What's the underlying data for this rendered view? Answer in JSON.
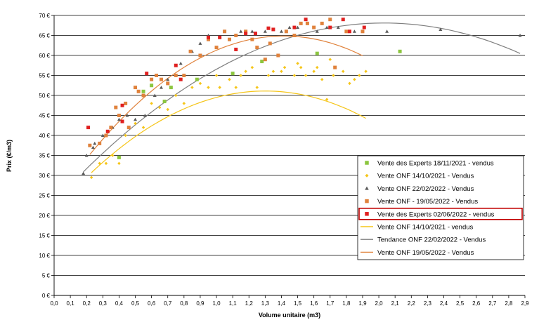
{
  "chart_data": {
    "type": "scatter",
    "xlabel": "Volume unitaire (m3)",
    "ylabel": "Prix (€/m3)",
    "xlim": [
      0,
      2.9
    ],
    "ylim": [
      0,
      70
    ],
    "x_ticks": [
      "0,0",
      "0,1",
      "0,2",
      "0,3",
      "0,4",
      "0,5",
      "0,6",
      "0,7",
      "0,8",
      "0,9",
      "1,0",
      "1,1",
      "1,2",
      "1,3",
      "1,4",
      "1,5",
      "1,6",
      "1,7",
      "1,8",
      "1,9",
      "2,0",
      "2,1",
      "2,2",
      "2,3",
      "2,4",
      "2,5",
      "2,6",
      "2,7",
      "2,8",
      "2,9"
    ],
    "y_ticks": [
      "0 €",
      "5 €",
      "10 €",
      "15 €",
      "20 €",
      "25 €",
      "30 €",
      "35 €",
      "40 €",
      "45 €",
      "50 €",
      "55 €",
      "60 €",
      "65 €",
      "70 €"
    ],
    "grid": "horizontal",
    "legend_position": "right",
    "series": [
      {
        "name": "Vente des Experts 18/11/2021 - vendus",
        "marker": "square",
        "color": "#8cc63f",
        "points": [
          [
            0.4,
            34.5
          ],
          [
            0.55,
            51
          ],
          [
            0.6,
            52.5
          ],
          [
            0.68,
            48.5
          ],
          [
            0.72,
            52
          ],
          [
            0.88,
            54
          ],
          [
            1.1,
            55.5
          ],
          [
            1.28,
            58.5
          ],
          [
            1.62,
            60.5
          ],
          [
            2.13,
            61
          ]
        ]
      },
      {
        "name": "Vente ONF 14/10/2021 - Vendus",
        "marker": "diamond",
        "color": "#f5c518",
        "points": [
          [
            0.23,
            29.5
          ],
          [
            0.28,
            33
          ],
          [
            0.32,
            33
          ],
          [
            0.36,
            35
          ],
          [
            0.4,
            33
          ],
          [
            0.44,
            40
          ],
          [
            0.5,
            43
          ],
          [
            0.55,
            42
          ],
          [
            0.6,
            48
          ],
          [
            0.65,
            47
          ],
          [
            0.7,
            46.5
          ],
          [
            0.75,
            50
          ],
          [
            0.8,
            48
          ],
          [
            0.85,
            52
          ],
          [
            0.9,
            53
          ],
          [
            0.95,
            52
          ],
          [
            1.0,
            55
          ],
          [
            1.02,
            52
          ],
          [
            1.08,
            54
          ],
          [
            1.12,
            52
          ],
          [
            1.15,
            55
          ],
          [
            1.18,
            56
          ],
          [
            1.22,
            57
          ],
          [
            1.25,
            52
          ],
          [
            1.3,
            59
          ],
          [
            1.32,
            55
          ],
          [
            1.35,
            56
          ],
          [
            1.4,
            56
          ],
          [
            1.42,
            57
          ],
          [
            1.48,
            55
          ],
          [
            1.5,
            58
          ],
          [
            1.52,
            57
          ],
          [
            1.55,
            55
          ],
          [
            1.6,
            56
          ],
          [
            1.62,
            57
          ],
          [
            1.65,
            54
          ],
          [
            1.68,
            49
          ],
          [
            1.7,
            59
          ],
          [
            1.72,
            55
          ],
          [
            1.78,
            56
          ],
          [
            1.82,
            53
          ],
          [
            1.85,
            54
          ],
          [
            1.88,
            55
          ],
          [
            1.92,
            56
          ]
        ]
      },
      {
        "name": "Vente ONF 22/02/2022 - Vendus",
        "marker": "triangle",
        "color": "#595959",
        "points": [
          [
            0.18,
            30.5
          ],
          [
            0.2,
            35
          ],
          [
            0.24,
            37
          ],
          [
            0.25,
            38
          ],
          [
            0.3,
            40
          ],
          [
            0.36,
            42
          ],
          [
            0.4,
            44
          ],
          [
            0.45,
            45
          ],
          [
            0.5,
            44
          ],
          [
            0.56,
            45
          ],
          [
            0.62,
            50
          ],
          [
            0.66,
            52
          ],
          [
            0.7,
            54
          ],
          [
            0.78,
            58
          ],
          [
            0.85,
            61
          ],
          [
            0.9,
            63
          ],
          [
            0.95,
            65
          ],
          [
            1.05,
            66
          ],
          [
            1.15,
            66
          ],
          [
            1.22,
            66
          ],
          [
            1.3,
            66
          ],
          [
            1.4,
            66
          ],
          [
            1.45,
            67
          ],
          [
            1.5,
            67
          ],
          [
            1.62,
            66
          ],
          [
            1.68,
            67
          ],
          [
            1.75,
            67
          ],
          [
            1.85,
            66
          ],
          [
            2.05,
            66
          ],
          [
            2.38,
            66.5
          ],
          [
            2.87,
            65
          ]
        ]
      },
      {
        "name": "Vente ONF - 19/05/2022 - Vendus",
        "marker": "square",
        "color": "#e0823c",
        "points": [
          [
            0.22,
            37.5
          ],
          [
            0.28,
            38
          ],
          [
            0.32,
            40
          ],
          [
            0.35,
            42
          ],
          [
            0.38,
            47
          ],
          [
            0.4,
            45
          ],
          [
            0.44,
            48
          ],
          [
            0.46,
            42
          ],
          [
            0.5,
            52
          ],
          [
            0.52,
            51
          ],
          [
            0.55,
            50
          ],
          [
            0.6,
            54
          ],
          [
            0.63,
            55
          ],
          [
            0.66,
            54
          ],
          [
            0.7,
            53
          ],
          [
            0.75,
            55
          ],
          [
            0.8,
            55
          ],
          [
            0.84,
            61
          ],
          [
            0.9,
            60
          ],
          [
            0.95,
            64
          ],
          [
            1.0,
            62
          ],
          [
            1.05,
            66
          ],
          [
            1.08,
            64
          ],
          [
            1.12,
            65
          ],
          [
            1.18,
            66
          ],
          [
            1.22,
            64
          ],
          [
            1.25,
            62
          ],
          [
            1.3,
            59
          ],
          [
            1.33,
            63
          ],
          [
            1.38,
            60
          ],
          [
            1.43,
            66
          ],
          [
            1.48,
            65
          ],
          [
            1.52,
            68
          ],
          [
            1.56,
            68
          ],
          [
            1.6,
            67
          ],
          [
            1.65,
            68
          ],
          [
            1.7,
            69
          ],
          [
            1.73,
            57
          ],
          [
            1.8,
            66
          ],
          [
            1.9,
            66
          ]
        ]
      },
      {
        "name": "Vente des Experts 02/06/2022 - vendus",
        "marker": "square",
        "color": "#e02020",
        "points": [
          [
            0.21,
            42
          ],
          [
            0.33,
            41
          ],
          [
            0.42,
            43.5
          ],
          [
            0.42,
            47.5
          ],
          [
            0.57,
            55.5
          ],
          [
            0.75,
            57.5
          ],
          [
            0.78,
            54
          ],
          [
            0.95,
            64.5
          ],
          [
            1.02,
            64.5
          ],
          [
            1.12,
            61.5
          ],
          [
            1.18,
            65.5
          ],
          [
            1.24,
            65.5
          ],
          [
            1.32,
            66.8
          ],
          [
            1.35,
            66.5
          ],
          [
            1.48,
            67
          ],
          [
            1.55,
            69
          ],
          [
            1.7,
            67
          ],
          [
            1.78,
            69
          ],
          [
            1.82,
            66
          ],
          [
            1.91,
            67
          ]
        ]
      },
      {
        "name": "Vente ONF 14/10/2021 - vendus",
        "type": "trendline",
        "color": "#f5c518",
        "poly": [
          21,
          46.3,
          -17.8
        ],
        "x_range": [
          0.23,
          1.92
        ]
      },
      {
        "name": "Tendance ONF 22/02/2022 - Vendus",
        "type": "trendline",
        "color": "#7f7f7f",
        "poly": [
          23.3,
          44.1,
          -10.85
        ],
        "x_range": [
          0.18,
          2.87
        ]
      },
      {
        "name": "Vente ONF 19/05/2022 - Vendus",
        "type": "trendline",
        "color": "#e0823c",
        "poly": [
          23.3,
          58.8,
          -20.8
        ],
        "x_range": [
          0.22,
          1.9
        ]
      }
    ]
  }
}
